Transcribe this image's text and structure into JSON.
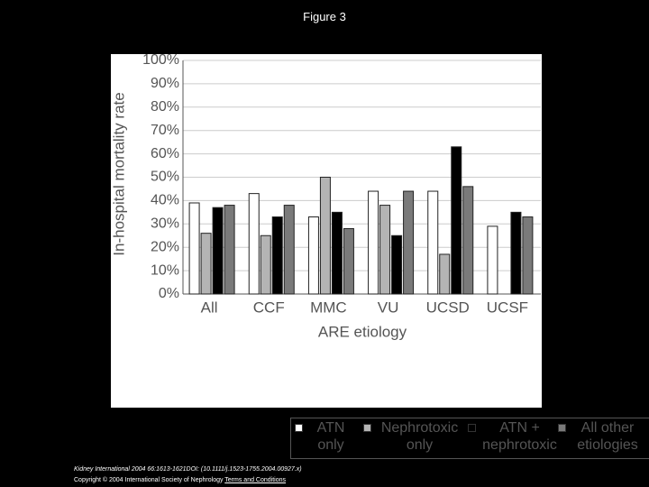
{
  "title": "Figure 3",
  "chart_data": {
    "type": "bar",
    "y_label": "In-hospital mortality rate",
    "x_label": "ARE etiology",
    "categories": [
      "All",
      "CCF",
      "MMC",
      "VU",
      "UCSD",
      "UCSF"
    ],
    "series": [
      {
        "name": "ATN only",
        "color": "#ffffff",
        "values": [
          39,
          43,
          33,
          44,
          44,
          29
        ]
      },
      {
        "name": "Nephrotoxic only",
        "color": "#b4b4b4",
        "values": [
          26,
          25,
          50,
          38,
          17,
          null
        ]
      },
      {
        "name": "ATN + nephrotoxic",
        "color": "#000000",
        "values": [
          37,
          33,
          35,
          25,
          63,
          35
        ]
      },
      {
        "name": "All other etiologies",
        "color": "#7a7a7a",
        "values": [
          38,
          38,
          28,
          44,
          46,
          33
        ]
      }
    ],
    "ylim": [
      0,
      100
    ],
    "yticks": [
      {
        "value": 0,
        "label": "0%"
      },
      {
        "value": 10,
        "label": "10%"
      },
      {
        "value": 20,
        "label": "20%"
      },
      {
        "value": 30,
        "label": "30%"
      },
      {
        "value": 40,
        "label": "40%"
      },
      {
        "value": 50,
        "label": "50%"
      },
      {
        "value": 60,
        "label": "60%"
      },
      {
        "value": 70,
        "label": "70%"
      },
      {
        "value": 80,
        "label": "80%"
      },
      {
        "value": 90,
        "label": "90%"
      },
      {
        "value": 100,
        "label": "100%"
      }
    ],
    "grid": true
  },
  "citation": {
    "line1": "Kidney International 2004 66:1613-1621DOI: (10.1111/j.1523-1755.2004.00927.x)",
    "line2": "Copyright © 2004 International Society of Nephrology ",
    "link": "Terms and Conditions"
  }
}
